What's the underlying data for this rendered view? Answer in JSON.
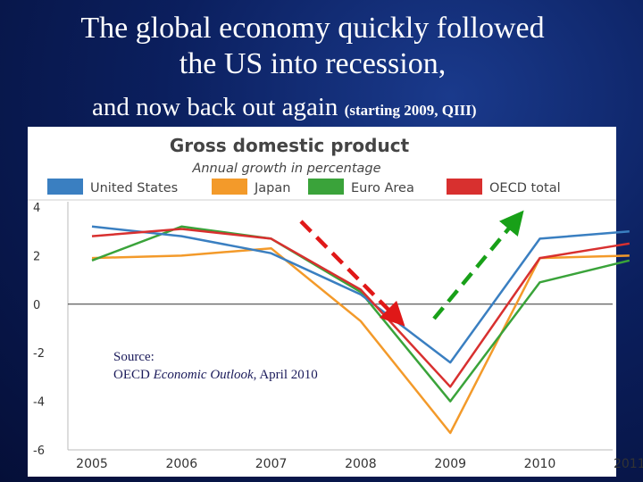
{
  "slide": {
    "title_line1": "The global economy quickly followed",
    "title_line2": "the US into recession,",
    "subtitle_main": "and now back out again",
    "subtitle_note": "(starting 2009, QIII)",
    "source_label": "Source:",
    "source_prefix": "OECD ",
    "source_italic": "Economic Outlook",
    "source_suffix": ", April 2010"
  },
  "chart_data": {
    "type": "line",
    "title": "Gross domestic product",
    "subtitle": "Annual growth in percentage",
    "x": [
      "2005",
      "2006",
      "2007",
      "2008",
      "2009",
      "2010",
      "2011"
    ],
    "ylim": [
      -6,
      4
    ],
    "yticks": [
      "4",
      "2",
      "0",
      "-2",
      "-4",
      "-6"
    ],
    "ytick_values": [
      4,
      2,
      0,
      -2,
      -4,
      -6
    ],
    "series": [
      {
        "name": "United States",
        "color": "#3a7fc1",
        "values": [
          3.2,
          2.8,
          2.1,
          0.4,
          -2.4,
          2.7,
          3.0
        ]
      },
      {
        "name": "Japan",
        "color": "#f39a2a",
        "values": [
          1.9,
          2.0,
          2.3,
          -0.7,
          -5.3,
          1.9,
          2.0
        ]
      },
      {
        "name": "Euro Area",
        "color": "#3aa33a",
        "values": [
          1.8,
          3.2,
          2.7,
          0.5,
          -4.0,
          0.9,
          1.8
        ]
      },
      {
        "name": "OECD total",
        "color": "#d8302f",
        "values": [
          2.8,
          3.1,
          2.7,
          0.6,
          -3.4,
          1.9,
          2.5
        ]
      }
    ],
    "annotations": {
      "down_arrow_color": "#e01818",
      "up_arrow_color": "#18a018"
    }
  }
}
